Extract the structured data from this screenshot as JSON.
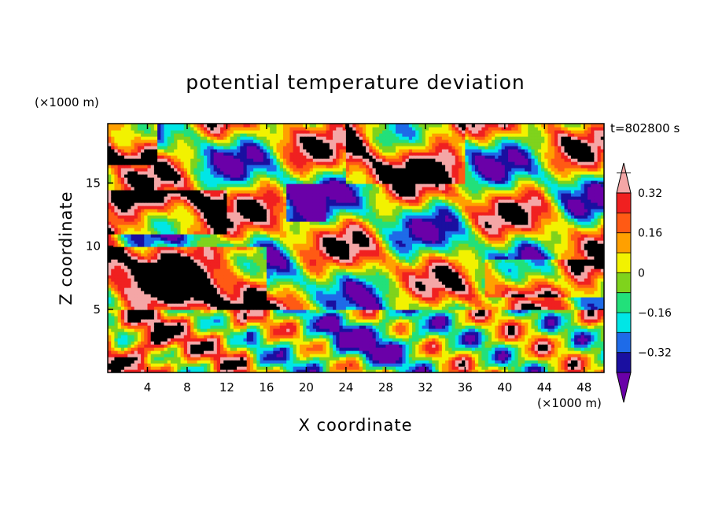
{
  "chart_data": {
    "type": "heatmap",
    "title": "potential temperature deviation",
    "xlabel": "X coordinate",
    "ylabel": "Z coordinate",
    "x_unit": "(×1000 m)",
    "y_unit": "(×1000 m)",
    "time_label": "t=802800 s",
    "xlim": [
      0,
      50
    ],
    "ylim": [
      0,
      19.7
    ],
    "x_ticks": [
      4,
      8,
      12,
      16,
      20,
      24,
      28,
      32,
      36,
      40,
      44,
      48
    ],
    "y_ticks": [
      5,
      10,
      15
    ],
    "colorbar": {
      "levels": [
        -0.4,
        -0.32,
        -0.24,
        -0.16,
        -0.08,
        0,
        0.08,
        0.16,
        0.24,
        0.32,
        0.4
      ],
      "labeled_ticks": [
        {
          "value": -0.32,
          "label": "−0.32"
        },
        {
          "value": -0.16,
          "label": "−0.16"
        },
        {
          "value": 0,
          "label": "0"
        },
        {
          "value": 0.16,
          "label": "0.16"
        },
        {
          "value": 0.32,
          "label": "0.32"
        }
      ],
      "colors": [
        "#6a00a8",
        "#1a0fa0",
        "#1e6be8",
        "#00e6e6",
        "#22e07a",
        "#7fd31c",
        "#f2f200",
        "#ffa000",
        "#ff5a14",
        "#f02020",
        "#f4a6a6"
      ],
      "extend": "both"
    },
    "field_description": "upper layer (z>5 km) mostly saturated at extremes: pink (>0.4) and purple (<-0.4) patches with thin multicolour transition bands; lower layer (z<5 km) shows full range of colours"
  }
}
